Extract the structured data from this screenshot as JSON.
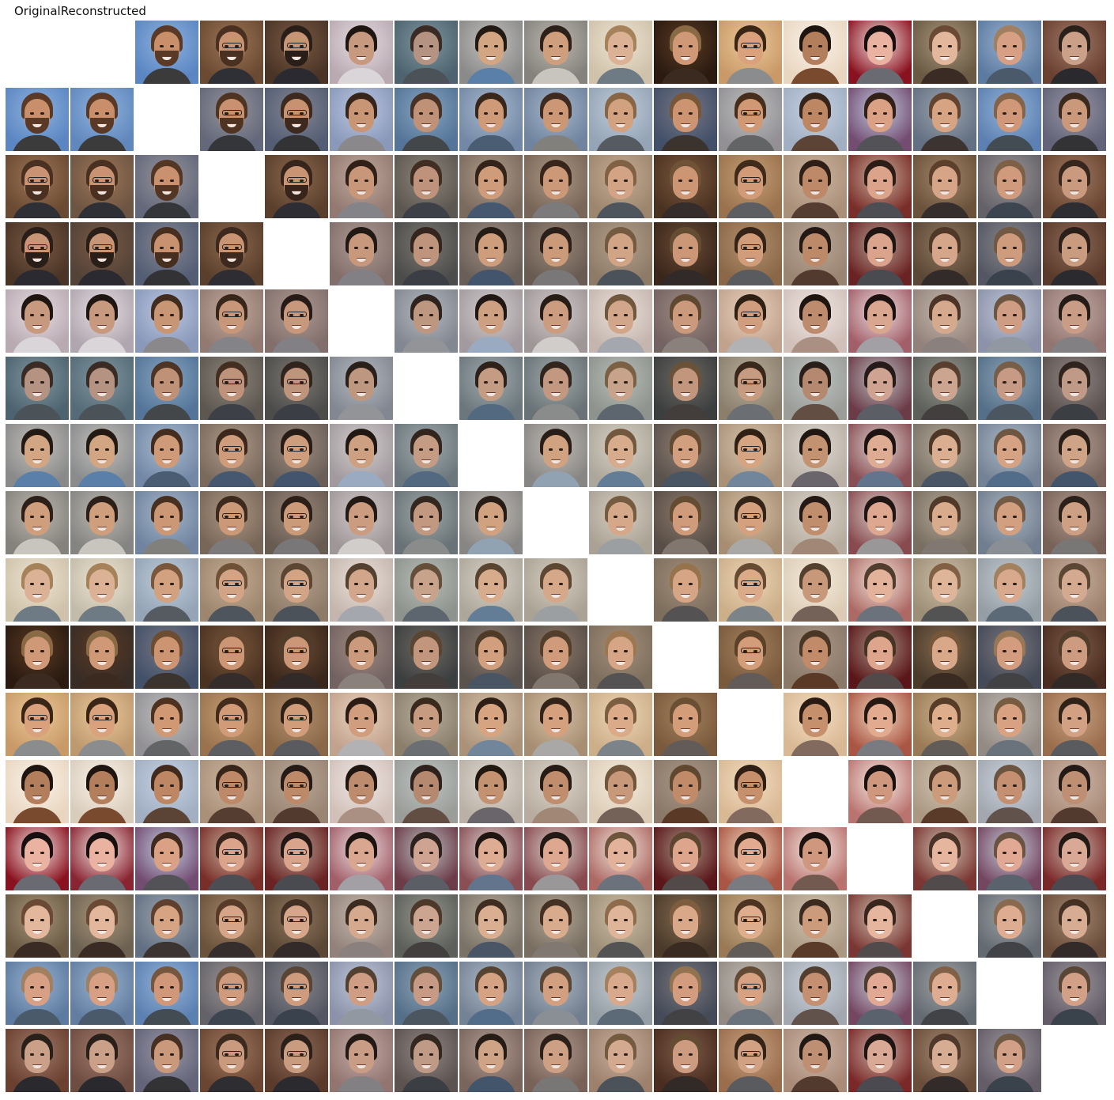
{
  "header": {
    "original_label": "Original",
    "reconstructed_label": "Reconstructed"
  },
  "grid": {
    "rows": 16,
    "cols": 17
  },
  "subjects": [
    {
      "skin": "#c98f6a",
      "hair": "#5a3a26",
      "bg": "#5b86c2",
      "bg2": "#8fb3df",
      "shirt": "#3b3b3b",
      "beard": true,
      "glasses": false
    },
    {
      "skin": "#c99373",
      "hair": "#4a3020",
      "bg": "#6a4a32",
      "bg2": "#9c7556",
      "shirt": "#2f3036",
      "beard": true,
      "glasses": true
    },
    {
      "skin": "#c79575",
      "hair": "#2a1e18",
      "bg": "#4a3426",
      "bg2": "#7a5a44",
      "shirt": "#2a2a30",
      "beard": true,
      "glasses": true
    },
    {
      "skin": "#c79a80",
      "hair": "#1f1612",
      "bg": "#b9aab2",
      "bg2": "#e6dce2",
      "shirt": "#d9d5d8",
      "beard": false,
      "glasses": false
    },
    {
      "skin": "#b49382",
      "hair": "#3a2c24",
      "bg": "#4d6470",
      "bg2": "#80959e",
      "shirt": "#4b5258",
      "beard": false,
      "glasses": false
    },
    {
      "skin": "#d2a583",
      "hair": "#241a14",
      "bg": "#8a8a8a",
      "bg2": "#c2c0bc",
      "shirt": "#5a7fa8",
      "beard": false,
      "glasses": false
    },
    {
      "skin": "#cf9e7d",
      "hair": "#2c2019",
      "bg": "#85827d",
      "bg2": "#bdb8b0",
      "shirt": "#c8c4be",
      "beard": false,
      "glasses": false
    },
    {
      "skin": "#dbb295",
      "hair": "#a6825a",
      "bg": "#cfc2aa",
      "bg2": "#ede4d2",
      "shirt": "#6e7a84",
      "beard": false,
      "glasses": false
    },
    {
      "skin": "#cf9876",
      "hair": "#8a6a44",
      "bg": "#2a1a10",
      "bg2": "#5a3a24",
      "shirt": "#3a2a20",
      "beard": false,
      "glasses": false
    },
    {
      "skin": "#d9a27c",
      "hair": "#3a2616",
      "bg": "#c99a68",
      "bg2": "#ecc89a",
      "shirt": "#8a8c8e",
      "beard": false,
      "glasses": true
    },
    {
      "skin": "#b37e5c",
      "hair": "#1e1410",
      "bg": "#e9d6c0",
      "bg2": "#faf3ea",
      "shirt": "#7a4a2e",
      "beard": false,
      "glasses": false
    },
    {
      "skin": "#eab2a0",
      "hair": "#181010",
      "bg": "#8a1220",
      "bg2": "#f4e6e2",
      "shirt": "#6a6a72",
      "beard": false,
      "glasses": false
    },
    {
      "skin": "#e2b79c",
      "hair": "#6a4a34",
      "bg": "#6a5a44",
      "bg2": "#a8957a",
      "shirt": "#3a2c24",
      "beard": false,
      "glasses": false
    },
    {
      "skin": "#d7a085",
      "hair": "#a08060",
      "bg": "#5d7aa0",
      "bg2": "#98b2cf",
      "shirt": "#4a5a6a",
      "beard": false,
      "glasses": false
    },
    {
      "skin": "#caa089",
      "hair": "#2a201a",
      "bg": "#6a4030",
      "bg2": "#a07a6a",
      "shirt": "#2a2a2e",
      "beard": false,
      "glasses": false
    }
  ]
}
